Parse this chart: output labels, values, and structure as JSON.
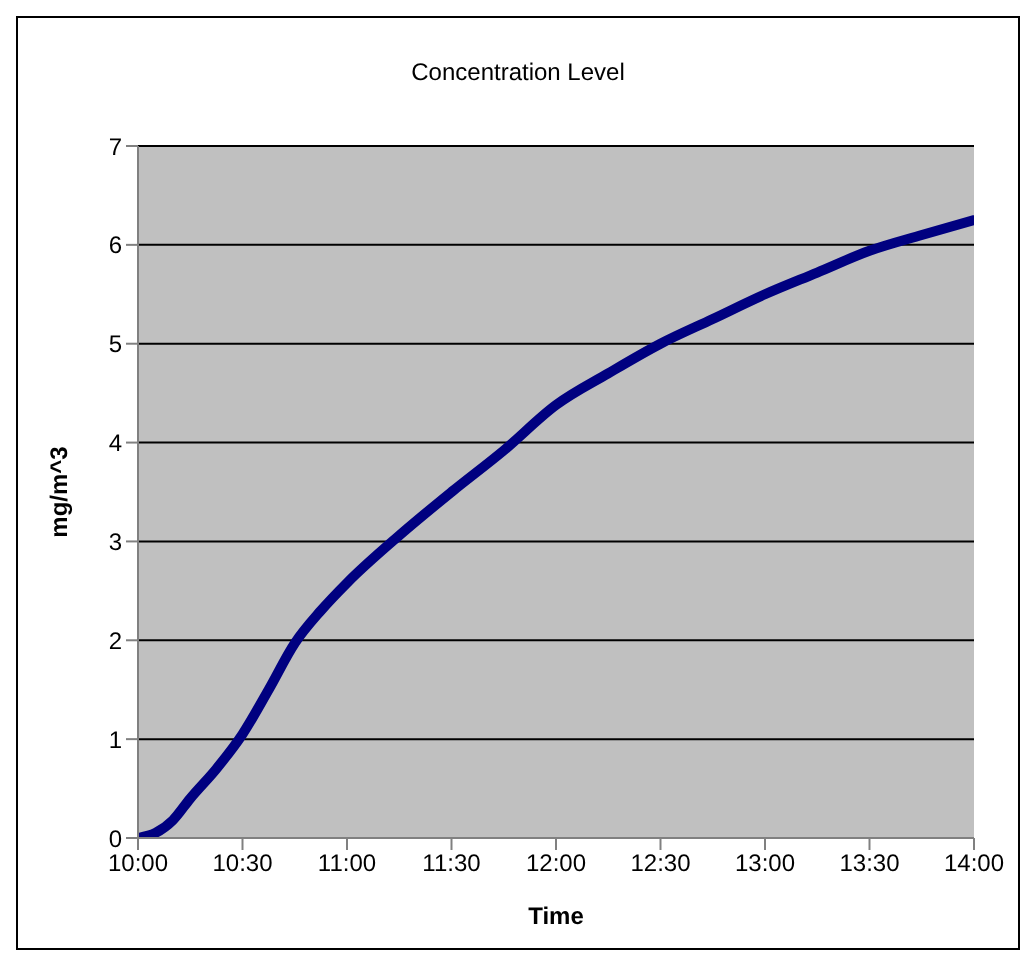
{
  "chart_data": {
    "type": "line",
    "title": "Concentration Level",
    "xlabel": "Time",
    "ylabel": "mg/m^3",
    "x": [
      10,
      10.083,
      10.167,
      10.25,
      10.375,
      10.5,
      10.625,
      10.75,
      10.875,
      11,
      11.25,
      11.5,
      11.75,
      12,
      12.25,
      12.5,
      12.75,
      13,
      13.25,
      13.5,
      13.75,
      14
    ],
    "series": [
      {
        "color": "#000080",
        "values": [
          0,
          0.05,
          0.18,
          0.4,
          0.7,
          1.05,
          1.5,
          1.97,
          2.3,
          2.58,
          3.06,
          3.5,
          3.92,
          4.38,
          4.7,
          5.0,
          5.25,
          5.5,
          5.72,
          5.94,
          6.1,
          6.25
        ]
      }
    ],
    "xlim": [
      10,
      14
    ],
    "xticks": [
      {
        "value": 10,
        "label": "10:00"
      },
      {
        "value": 10.5,
        "label": "10:30"
      },
      {
        "value": 11,
        "label": "11:00"
      },
      {
        "value": 11.5,
        "label": "11:30"
      },
      {
        "value": 12,
        "label": "12:00"
      },
      {
        "value": 12.5,
        "label": "12:30"
      },
      {
        "value": 13,
        "label": "13:00"
      },
      {
        "value": 13.5,
        "label": "13:30"
      },
      {
        "value": 14,
        "label": "14:00"
      }
    ],
    "ylim": [
      0,
      7
    ],
    "yticks": [
      0,
      1,
      2,
      3,
      4,
      5,
      6,
      7
    ],
    "grid": "y",
    "legend": false,
    "marker": "none",
    "line_style": "solid"
  }
}
